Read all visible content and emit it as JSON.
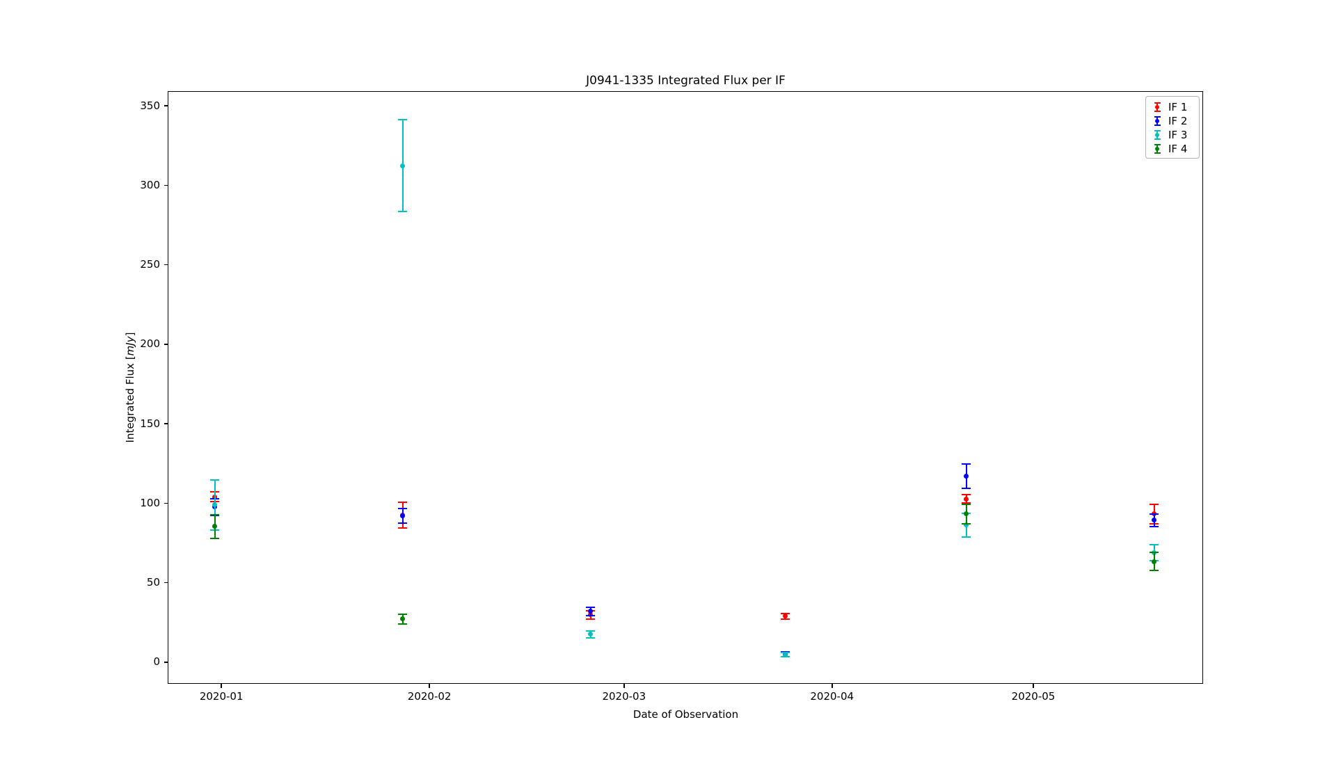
{
  "figure": {
    "title": "J0941-1335 Integrated Flux per IF",
    "xlabel": "Date of Observation",
    "ylabel_prefix": "Integrated Flux [",
    "ylabel_math": "mJy",
    "ylabel_suffix": "]",
    "background_color": "#ffffff",
    "spine_color": "#000000"
  },
  "chart_data": {
    "type": "scatter",
    "subtype": "errorbar",
    "title": "J0941-1335 Integrated Flux per IF",
    "xlabel": "Date of Observation",
    "ylabel": "Integrated Flux [mJy]",
    "grid": false,
    "legend_position": "upper right",
    "x_epoch": "2020-01-01",
    "xlim_days": [
      -7.9,
      146.3
    ],
    "ylim": [
      -13.6,
      358.8
    ],
    "x_ticks": [
      {
        "label": "2020-01",
        "date": "2020-01-01"
      },
      {
        "label": "2020-02",
        "date": "2020-02-01"
      },
      {
        "label": "2020-03",
        "date": "2020-03-01"
      },
      {
        "label": "2020-04",
        "date": "2020-04-01"
      },
      {
        "label": "2020-05",
        "date": "2020-05-01"
      }
    ],
    "y_ticks": [
      0,
      50,
      100,
      150,
      200,
      250,
      300,
      350
    ],
    "series": [
      {
        "name": "IF 1",
        "color": "#ff0000",
        "points": [
          {
            "date": "2019-12-31",
            "value": 104.0,
            "error": 3.0
          },
          {
            "date": "2020-01-28",
            "value": 92.5,
            "error": 8.1
          },
          {
            "date": "2020-02-25",
            "value": 29.8,
            "error": 2.7
          },
          {
            "date": "2020-03-25",
            "value": 28.9,
            "error": 1.8
          },
          {
            "date": "2020-04-21",
            "value": 102.8,
            "error": 2.5
          },
          {
            "date": "2020-05-19",
            "value": 93.2,
            "error": 6.1
          }
        ]
      },
      {
        "name": "IF 2",
        "color": "#0000ff",
        "points": [
          {
            "date": "2019-12-31",
            "value": 97.6,
            "error": 5.4
          },
          {
            "date": "2020-01-28",
            "value": 92.0,
            "error": 4.6
          },
          {
            "date": "2020-02-25",
            "value": 32.0,
            "error": 2.6
          },
          {
            "date": "2020-03-25",
            "value": 5.0,
            "error": 1.5
          },
          {
            "date": "2020-04-21",
            "value": 117.0,
            "error": 7.5
          },
          {
            "date": "2020-05-19",
            "value": 89.3,
            "error": 4.0
          }
        ]
      },
      {
        "name": "IF 3",
        "color": "#00bfbf",
        "points": [
          {
            "date": "2019-12-31",
            "value": 98.9,
            "error": 15.7
          },
          {
            "date": "2020-01-28",
            "value": 312.4,
            "error": 29.0
          },
          {
            "date": "2020-02-25",
            "value": 17.5,
            "error": 2.0
          },
          {
            "date": "2020-03-25",
            "value": 4.7,
            "error": 1.3
          },
          {
            "date": "2020-04-21",
            "value": 86.2,
            "error": 7.4
          },
          {
            "date": "2020-05-19",
            "value": 69.0,
            "error": 5.0
          }
        ]
      },
      {
        "name": "IF 4",
        "color": "#008000",
        "points": [
          {
            "date": "2019-12-31",
            "value": 85.3,
            "error": 7.5
          },
          {
            "date": "2020-01-28",
            "value": 27.1,
            "error": 3.0
          },
          {
            "date": "2020-04-21",
            "value": 93.2,
            "error": 6.3
          },
          {
            "date": "2020-05-19",
            "value": 63.4,
            "error": 5.5
          }
        ]
      }
    ]
  }
}
